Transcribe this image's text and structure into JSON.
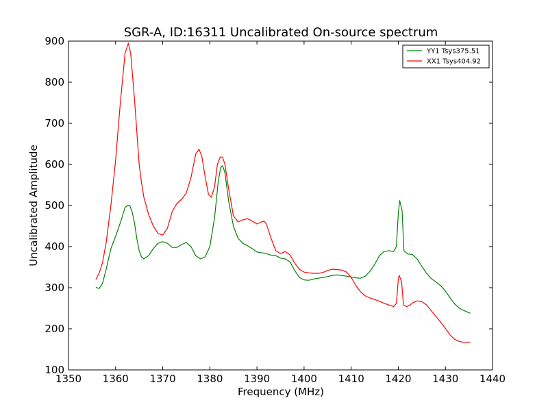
{
  "chart_data": {
    "type": "line",
    "title": "SGR-A, ID:16311 Uncalibrated On-source spectrum",
    "xlabel": "Frequency (MHz)",
    "ylabel": "Uncalibrated Amplitude",
    "xlim": [
      1350,
      1440
    ],
    "ylim": [
      100,
      900
    ],
    "xticks": [
      "1350",
      "1360",
      "1370",
      "1380",
      "1390",
      "1400",
      "1410",
      "1420",
      "1430",
      "1440"
    ],
    "yticks": [
      "100",
      "200",
      "300",
      "400",
      "500",
      "600",
      "700",
      "800",
      "900"
    ],
    "grid": false,
    "legend_position": "top-right",
    "series": [
      {
        "name": "YY1 Tsys375.51",
        "color": "#008000",
        "points": [
          [
            1355.8,
            301
          ],
          [
            1356.5,
            298
          ],
          [
            1357.2,
            310
          ],
          [
            1358.0,
            345
          ],
          [
            1359.0,
            395
          ],
          [
            1360.0,
            425
          ],
          [
            1361.0,
            458
          ],
          [
            1362.0,
            495
          ],
          [
            1362.5,
            500
          ],
          [
            1363.0,
            500
          ],
          [
            1363.5,
            485
          ],
          [
            1364.0,
            458
          ],
          [
            1364.5,
            420
          ],
          [
            1365.0,
            390
          ],
          [
            1365.5,
            375
          ],
          [
            1366.0,
            370
          ],
          [
            1367.0,
            378
          ],
          [
            1368.0,
            395
          ],
          [
            1369.0,
            408
          ],
          [
            1370.0,
            412
          ],
          [
            1371.0,
            408
          ],
          [
            1372.0,
            398
          ],
          [
            1373.0,
            398
          ],
          [
            1374.0,
            405
          ],
          [
            1375.0,
            410
          ],
          [
            1376.0,
            400
          ],
          [
            1377.0,
            378
          ],
          [
            1378.0,
            370
          ],
          [
            1379.0,
            375
          ],
          [
            1380.0,
            400
          ],
          [
            1381.0,
            470
          ],
          [
            1381.8,
            560
          ],
          [
            1382.3,
            592
          ],
          [
            1382.7,
            597
          ],
          [
            1383.2,
            580
          ],
          [
            1384.0,
            510
          ],
          [
            1385.0,
            450
          ],
          [
            1386.0,
            420
          ],
          [
            1387.0,
            408
          ],
          [
            1388.0,
            402
          ],
          [
            1389.0,
            395
          ],
          [
            1390.0,
            387
          ],
          [
            1391.0,
            385
          ],
          [
            1392.0,
            383
          ],
          [
            1393.0,
            379
          ],
          [
            1394.0,
            378
          ],
          [
            1395.0,
            372
          ],
          [
            1396.0,
            370
          ],
          [
            1397.0,
            363
          ],
          [
            1398.0,
            342
          ],
          [
            1399.0,
            325
          ],
          [
            1400.0,
            319
          ],
          [
            1401.0,
            318
          ],
          [
            1402.0,
            321
          ],
          [
            1403.0,
            323
          ],
          [
            1404.0,
            325
          ],
          [
            1405.0,
            327
          ],
          [
            1406.0,
            330
          ],
          [
            1407.0,
            331
          ],
          [
            1408.0,
            330
          ],
          [
            1409.0,
            328
          ],
          [
            1410.0,
            326
          ],
          [
            1411.0,
            324
          ],
          [
            1412.0,
            323
          ],
          [
            1413.0,
            328
          ],
          [
            1414.0,
            340
          ],
          [
            1415.0,
            357
          ],
          [
            1416.0,
            378
          ],
          [
            1417.0,
            388
          ],
          [
            1418.0,
            390
          ],
          [
            1419.0,
            388
          ],
          [
            1419.6,
            400
          ],
          [
            1420.0,
            480
          ],
          [
            1420.3,
            512
          ],
          [
            1420.8,
            488
          ],
          [
            1421.2,
            390
          ],
          [
            1422.0,
            382
          ],
          [
            1423.0,
            381
          ],
          [
            1424.0,
            370
          ],
          [
            1425.0,
            352
          ],
          [
            1426.0,
            335
          ],
          [
            1427.0,
            322
          ],
          [
            1428.0,
            314
          ],
          [
            1429.0,
            305
          ],
          [
            1430.0,
            292
          ],
          [
            1431.0,
            275
          ],
          [
            1432.0,
            260
          ],
          [
            1433.0,
            250
          ],
          [
            1434.0,
            244
          ],
          [
            1435.0,
            239
          ],
          [
            1435.3,
            238
          ]
        ]
      },
      {
        "name": "XX1 Tsys404.92",
        "color": "#ff0000",
        "points": [
          [
            1355.8,
            320
          ],
          [
            1356.5,
            335
          ],
          [
            1357.2,
            360
          ],
          [
            1358.0,
            410
          ],
          [
            1359.0,
            500
          ],
          [
            1360.0,
            610
          ],
          [
            1361.0,
            750
          ],
          [
            1362.0,
            870
          ],
          [
            1362.7,
            895
          ],
          [
            1363.2,
            870
          ],
          [
            1364.0,
            760
          ],
          [
            1364.5,
            680
          ],
          [
            1365.0,
            600
          ],
          [
            1365.5,
            555
          ],
          [
            1366.0,
            520
          ],
          [
            1367.0,
            478
          ],
          [
            1368.0,
            450
          ],
          [
            1369.0,
            432
          ],
          [
            1370.0,
            428
          ],
          [
            1371.0,
            445
          ],
          [
            1372.0,
            485
          ],
          [
            1373.0,
            505
          ],
          [
            1374.0,
            515
          ],
          [
            1375.0,
            530
          ],
          [
            1376.0,
            568
          ],
          [
            1377.0,
            625
          ],
          [
            1377.7,
            637
          ],
          [
            1378.3,
            620
          ],
          [
            1379.0,
            570
          ],
          [
            1379.7,
            528
          ],
          [
            1380.3,
            520
          ],
          [
            1381.0,
            545
          ],
          [
            1381.6,
            600
          ],
          [
            1382.2,
            618
          ],
          [
            1382.7,
            618
          ],
          [
            1383.2,
            600
          ],
          [
            1384.0,
            540
          ],
          [
            1385.0,
            475
          ],
          [
            1386.0,
            460
          ],
          [
            1387.0,
            465
          ],
          [
            1388.0,
            468
          ],
          [
            1389.0,
            462
          ],
          [
            1390.0,
            455
          ],
          [
            1391.0,
            460
          ],
          [
            1391.5,
            462
          ],
          [
            1392.0,
            455
          ],
          [
            1393.0,
            420
          ],
          [
            1394.0,
            390
          ],
          [
            1395.0,
            383
          ],
          [
            1396.0,
            388
          ],
          [
            1397.0,
            380
          ],
          [
            1398.0,
            360
          ],
          [
            1399.0,
            345
          ],
          [
            1400.0,
            338
          ],
          [
            1401.0,
            336
          ],
          [
            1402.0,
            335
          ],
          [
            1403.0,
            335
          ],
          [
            1404.0,
            337
          ],
          [
            1405.0,
            342
          ],
          [
            1406.0,
            345
          ],
          [
            1407.0,
            344
          ],
          [
            1408.0,
            343
          ],
          [
            1409.0,
            338
          ],
          [
            1410.0,
            325
          ],
          [
            1411.0,
            305
          ],
          [
            1412.0,
            290
          ],
          [
            1413.0,
            280
          ],
          [
            1414.0,
            275
          ],
          [
            1415.0,
            271
          ],
          [
            1416.0,
            267
          ],
          [
            1417.0,
            262
          ],
          [
            1418.0,
            258
          ],
          [
            1419.0,
            254
          ],
          [
            1419.6,
            262
          ],
          [
            1420.0,
            320
          ],
          [
            1420.2,
            330
          ],
          [
            1420.7,
            315
          ],
          [
            1421.1,
            258
          ],
          [
            1421.8,
            254
          ],
          [
            1422.5,
            258
          ],
          [
            1423.0,
            263
          ],
          [
            1424.0,
            268
          ],
          [
            1425.0,
            266
          ],
          [
            1426.0,
            258
          ],
          [
            1427.0,
            244
          ],
          [
            1428.0,
            230
          ],
          [
            1429.0,
            216
          ],
          [
            1430.0,
            201
          ],
          [
            1431.0,
            185
          ],
          [
            1432.0,
            174
          ],
          [
            1433.0,
            169
          ],
          [
            1434.0,
            167
          ],
          [
            1435.0,
            167
          ],
          [
            1435.3,
            168
          ]
        ]
      }
    ]
  }
}
